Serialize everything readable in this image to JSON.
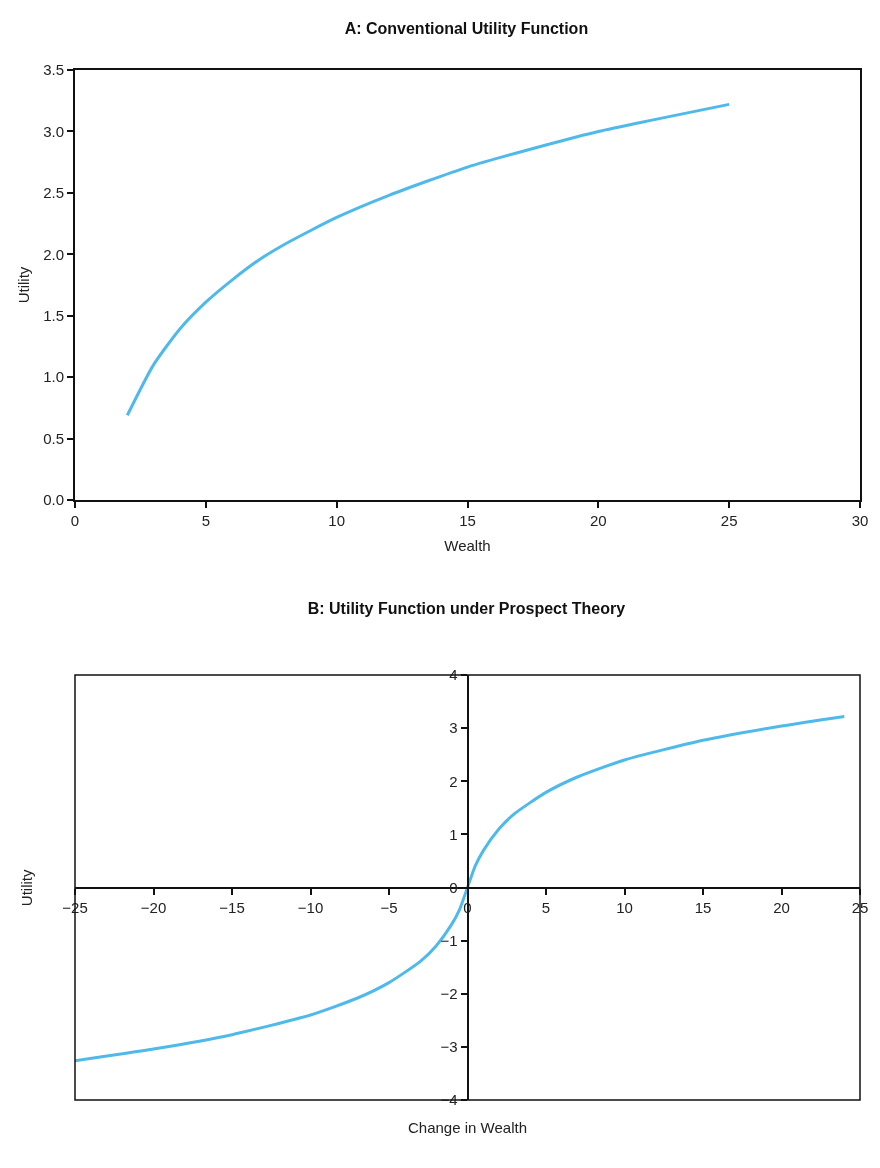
{
  "chart_data": [
    {
      "type": "line",
      "title": "A: Conventional Utility Function",
      "xlabel": "Wealth",
      "ylabel": "Utility",
      "x": [
        2,
        3,
        4,
        5,
        6,
        7,
        8,
        10,
        12,
        15,
        18,
        20,
        22,
        25
      ],
      "values": [
        0.69,
        1.1,
        1.39,
        1.61,
        1.79,
        1.95,
        2.08,
        2.3,
        2.48,
        2.71,
        2.89,
        3.0,
        3.09,
        3.22
      ],
      "color": "#4fb9ea",
      "xlim": [
        0,
        30
      ],
      "xticks": [
        0,
        5,
        10,
        15,
        20,
        25,
        30
      ],
      "ylim": [
        0,
        3.5
      ],
      "yticks": [
        {
          "value": 0,
          "label": "0.0"
        },
        {
          "value": 0.5,
          "label": "0.5"
        },
        {
          "value": 1,
          "label": "1.0"
        },
        {
          "value": 1.5,
          "label": "1.5"
        },
        {
          "value": 2,
          "label": "2.0"
        },
        {
          "value": 2.5,
          "label": "2.5"
        },
        {
          "value": 3,
          "label": "3.0"
        },
        {
          "value": 3.5,
          "label": "3.5"
        }
      ]
    },
    {
      "type": "line",
      "title": "B: Utility Function under Prospect Theory",
      "xlabel": "Change in Wealth",
      "ylabel": "Utility",
      "x": [
        -25,
        -20,
        -15,
        -10,
        -7,
        -5,
        -3,
        -2,
        -1,
        -0.5,
        0,
        0.5,
        1,
        2,
        3,
        5,
        7,
        10,
        15,
        20,
        24
      ],
      "values": [
        -3.26,
        -3.04,
        -2.77,
        -2.4,
        -2.08,
        -1.79,
        -1.39,
        -1.1,
        -0.69,
        -0.41,
        0,
        0.41,
        0.69,
        1.1,
        1.39,
        1.79,
        2.08,
        2.4,
        2.77,
        3.04,
        3.22
      ],
      "color": "#4fb9ea",
      "xlim": [
        -25,
        25
      ],
      "xticks": [
        {
          "value": -25,
          "label": "−25"
        },
        {
          "value": -20,
          "label": "−20"
        },
        {
          "value": -15,
          "label": "−15"
        },
        {
          "value": -10,
          "label": "−10"
        },
        {
          "value": -5,
          "label": "−5"
        },
        0,
        5,
        10,
        15,
        20,
        25
      ],
      "ylim": [
        -4,
        4
      ],
      "yticks": [
        {
          "value": -4,
          "label": "−4"
        },
        {
          "value": -3,
          "label": "−3"
        },
        {
          "value": -2,
          "label": "−2"
        },
        {
          "value": -1,
          "label": "−1"
        },
        0,
        1,
        2,
        3,
        4
      ]
    }
  ]
}
